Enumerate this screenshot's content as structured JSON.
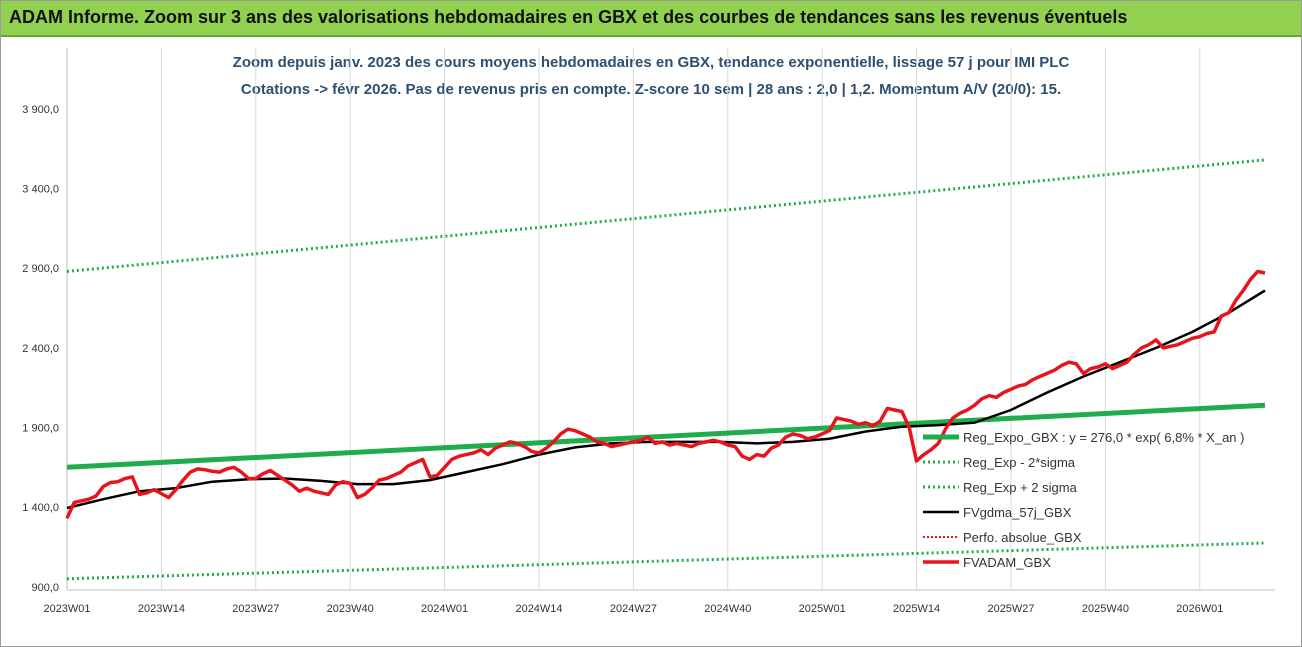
{
  "header": {
    "banner": "ADAM Informe. Zoom sur 3 ans des valorisations hebdomadaires en GBX et des courbes de tendances sans les revenus éventuels"
  },
  "colors": {
    "banner_bg": "#92d050",
    "trend": "#1fad4c",
    "band": "#1fad4c",
    "gdma": "#000000",
    "price": "#e8141b",
    "perf": "#e8141b"
  },
  "chart_data": {
    "type": "line",
    "title": "Zoom depuis janv. 2023 des cours moyens hebdomadaires en GBX, tendance exponentielle, lissage 57 j pour IMI PLC",
    "subtitle": "Cotations -> févr 2026. Pas de revenus pris en compte. Z-score 10 sem | 28 ans : 2,0 | 1,2. Momentum A/V (20/0): 15.",
    "x_ticks": [
      "2023W01",
      "2023W14",
      "2023W27",
      "2023W40",
      "2024W01",
      "2024W14",
      "2024W27",
      "2024W40",
      "2025W01",
      "2025W14",
      "2025W27",
      "2025W40",
      "2026W01"
    ],
    "y_ticks": [
      "900,0",
      "1 400,0",
      "1 900,0",
      "2 400,0",
      "2 900,0",
      "3 400,0",
      "3 900,0"
    ],
    "y_tick_values": [
      900,
      1400,
      1900,
      2400,
      2900,
      3400,
      3900
    ],
    "ylim": [
      880,
      4000
    ],
    "x_range_weeks": [
      0,
      165
    ],
    "grid": "vertical",
    "legend_position": "right-inside",
    "series": [
      {
        "name": "Reg_Expo_GBX : y = 276,0 * exp( 6,8% *  X_an )",
        "style": "trend",
        "x": [
          0,
          165
        ],
        "y": [
          1650,
          2040
        ]
      },
      {
        "name": "Reg_Exp - 2*sigma",
        "style": "band",
        "x": [
          0,
          165
        ],
        "y": [
          950,
          1175
        ]
      },
      {
        "name": "Reg_Exp + 2 sigma",
        "style": "band",
        "x": [
          0,
          165
        ],
        "y": [
          2880,
          3580
        ]
      },
      {
        "name": "FVgdma_57j_GBX",
        "style": "gdma",
        "x": [
          0,
          5,
          10,
          15,
          20,
          25,
          30,
          35,
          40,
          45,
          50,
          55,
          60,
          65,
          70,
          75,
          80,
          85,
          90,
          95,
          100,
          105,
          110,
          115,
          120,
          125,
          130,
          135,
          140,
          145,
          150,
          155,
          160,
          165
        ],
        "y": [
          1395,
          1450,
          1500,
          1520,
          1560,
          1575,
          1580,
          1565,
          1545,
          1545,
          1570,
          1620,
          1670,
          1730,
          1775,
          1800,
          1810,
          1810,
          1810,
          1800,
          1810,
          1830,
          1875,
          1905,
          1915,
          1930,
          2010,
          2120,
          2220,
          2310,
          2400,
          2500,
          2620,
          2760
        ]
      },
      {
        "name": "Perfo. absolue_GBX",
        "style": "perf",
        "x": [],
        "y": []
      },
      {
        "name": "FVADAM_GBX",
        "style": "price",
        "x": [
          0,
          1,
          2,
          3,
          4,
          5,
          6,
          7,
          8,
          9,
          10,
          11,
          12,
          13,
          14,
          15,
          16,
          17,
          18,
          19,
          20,
          21,
          22,
          23,
          24,
          25,
          26,
          27,
          28,
          29,
          30,
          31,
          32,
          33,
          34,
          35,
          36,
          37,
          38,
          39,
          40,
          41,
          42,
          43,
          44,
          45,
          46,
          47,
          48,
          49,
          50,
          51,
          52,
          53,
          54,
          55,
          56,
          57,
          58,
          59,
          60,
          61,
          62,
          63,
          64,
          65,
          66,
          67,
          68,
          69,
          70,
          71,
          72,
          73,
          74,
          75,
          76,
          77,
          78,
          79,
          80,
          81,
          82,
          83,
          84,
          85,
          86,
          87,
          88,
          89,
          90,
          91,
          92,
          93,
          94,
          95,
          96,
          97,
          98,
          99,
          100,
          101,
          102,
          103,
          104,
          105,
          106,
          107,
          108,
          109,
          110,
          111,
          112,
          113,
          114,
          115,
          116,
          117,
          118,
          119,
          120,
          121,
          122,
          123,
          124,
          125,
          126,
          127,
          128,
          129,
          130,
          131,
          132,
          133,
          134,
          135,
          136,
          137,
          138,
          139,
          140,
          141,
          142,
          143,
          144,
          145,
          146,
          147,
          148,
          149,
          150,
          151,
          152,
          153,
          154,
          155,
          156,
          157,
          158,
          159,
          160,
          161,
          162,
          163,
          164,
          165
        ],
        "y": [
          1330,
          1430,
          1440,
          1450,
          1470,
          1530,
          1555,
          1560,
          1580,
          1590,
          1480,
          1490,
          1510,
          1485,
          1460,
          1510,
          1570,
          1620,
          1640,
          1635,
          1625,
          1620,
          1640,
          1650,
          1620,
          1580,
          1580,
          1610,
          1630,
          1600,
          1570,
          1540,
          1500,
          1520,
          1500,
          1490,
          1480,
          1540,
          1560,
          1550,
          1460,
          1480,
          1520,
          1570,
          1580,
          1600,
          1620,
          1660,
          1680,
          1700,
          1590,
          1600,
          1650,
          1700,
          1720,
          1730,
          1740,
          1760,
          1730,
          1770,
          1790,
          1810,
          1800,
          1780,
          1750,
          1740,
          1770,
          1810,
          1860,
          1890,
          1880,
          1860,
          1840,
          1810,
          1800,
          1780,
          1790,
          1800,
          1810,
          1820,
          1840,
          1800,
          1810,
          1790,
          1800,
          1790,
          1780,
          1800,
          1810,
          1820,
          1810,
          1790,
          1780,
          1720,
          1700,
          1730,
          1720,
          1770,
          1790,
          1840,
          1860,
          1850,
          1830,
          1840,
          1860,
          1880,
          1960,
          1950,
          1940,
          1920,
          1930,
          1910,
          1940,
          2020,
          2010,
          2000,
          1900,
          1690,
          1730,
          1760,
          1800,
          1890,
          1960,
          1990,
          2010,
          2040,
          2080,
          2100,
          2090,
          2120,
          2140,
          2160,
          2170,
          2200,
          2220,
          2240,
          2260,
          2290,
          2310,
          2300,
          2240,
          2270,
          2280,
          2300,
          2270,
          2290,
          2310,
          2360,
          2400,
          2420,
          2450,
          2400,
          2410,
          2420,
          2440,
          2460,
          2470,
          2490,
          2500,
          2600,
          2620,
          2700,
          2760,
          2830,
          2880,
          2870
        ]
      }
    ]
  }
}
